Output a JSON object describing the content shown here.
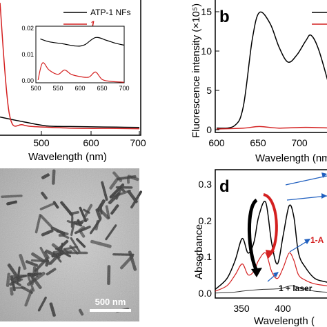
{
  "panel_a": {
    "legend": [
      "ATP-1 NFs",
      "1"
    ],
    "xlabel": "Wavelength (nm)",
    "xticks": [
      "500",
      "600",
      "700"
    ],
    "inset_xticks": [
      "500",
      "550",
      "600",
      "650",
      "700"
    ],
    "inset_yticks": [
      "0.02",
      "0.01",
      "0.00"
    ]
  },
  "panel_b": {
    "letter": "b",
    "xlabel": "Wavelength (nm)",
    "ylabel": "Fluorescence intensity (×10⁵)",
    "xticks": [
      "600",
      "650",
      "700"
    ],
    "yticks": [
      "15",
      "10",
      "5",
      "0"
    ]
  },
  "panel_c": {
    "scale_bar": "500 nm"
  },
  "panel_d": {
    "letter": "d",
    "xlabel": "Wavelength (",
    "ylabel": "Absorbance",
    "xticks": [
      "350",
      "400"
    ],
    "yticks": [
      "0.3",
      "0.2",
      "0.1",
      "0.0"
    ],
    "annotations": [
      "1-A",
      "1 + laser"
    ]
  },
  "colors": {
    "black": "#000000",
    "red": "#d42020",
    "blue": "#1f5fbf"
  },
  "chart_data": [
    {
      "type": "line",
      "panel": "a",
      "xlabel": "Wavelength (nm)",
      "xlim": [
        400,
        700
      ],
      "series": [
        {
          "name": "ATP-1 NFs",
          "x": [
            400,
            450,
            500,
            550,
            600,
            650,
            700
          ],
          "y": [
            0.04,
            0.025,
            0.012,
            0.01,
            0.009,
            0.008,
            0.007
          ]
        },
        {
          "name": "1",
          "x": [
            400,
            420,
            450,
            500,
            550,
            600,
            650,
            700
          ],
          "y": [
            0.3,
            0.05,
            0.015,
            0.008,
            0.005,
            0.004,
            0.004,
            0.003
          ]
        }
      ]
    },
    {
      "type": "line",
      "panel": "a-inset",
      "xlim": [
        500,
        700
      ],
      "ylim": [
        0,
        0.02
      ],
      "series": [
        {
          "name": "ATP-1 NFs",
          "x": [
            510,
            530,
            560,
            590,
            610,
            635,
            660,
            680,
            700
          ],
          "y": [
            0.0155,
            0.0145,
            0.0138,
            0.013,
            0.0134,
            0.016,
            0.015,
            0.014,
            0.0133
          ]
        },
        {
          "name": "1",
          "x": [
            505,
            515,
            530,
            550,
            565,
            580,
            600,
            620,
            635,
            650,
            670,
            700
          ],
          "y": [
            0.001,
            0.007,
            0.0045,
            0.003,
            0.0045,
            0.003,
            0.0022,
            0.002,
            0.0038,
            0.0012,
            0.0005,
            0.0002
          ]
        }
      ]
    },
    {
      "type": "line",
      "panel": "b",
      "xlabel": "Wavelength (nm)",
      "ylabel": "Fluorescence intensity (×10⁵)",
      "xlim": [
        600,
        730
      ],
      "ylim": [
        0,
        16
      ],
      "series": [
        {
          "name": "black",
          "x": [
            600,
            620,
            630,
            640,
            648,
            660,
            670,
            680,
            690,
            700,
            706,
            715,
            730
          ],
          "y": [
            0.2,
            0.5,
            3.0,
            11.5,
            14.9,
            13.5,
            10.5,
            8.6,
            9.5,
            11.3,
            12.0,
            10.0,
            4.0
          ]
        },
        {
          "name": "red",
          "x": [
            600,
            630,
            648,
            670,
            700,
            730
          ],
          "y": [
            0.1,
            0.2,
            0.4,
            0.2,
            0.3,
            0.2
          ]
        }
      ]
    },
    {
      "type": "line",
      "panel": "d",
      "xlabel": "Wavelength (",
      "ylabel": "Absorbance",
      "xlim": [
        335,
        440
      ],
      "ylim": [
        0,
        0.32
      ],
      "series": [
        {
          "name": "black",
          "x": [
            335,
            345,
            352,
            358,
            363,
            368,
            372,
            378,
            383,
            388,
            393,
            398,
            402,
            406,
            412,
            420,
            430,
            440
          ],
          "y": [
            0.02,
            0.05,
            0.1,
            0.16,
            0.12,
            0.15,
            0.22,
            0.26,
            0.15,
            0.09,
            0.17,
            0.25,
            0.22,
            0.12,
            0.08,
            0.05,
            0.04,
            0.03
          ]
        },
        {
          "name": "1-A",
          "x": [
            335,
            345,
            352,
            358,
            363,
            368,
            372,
            378,
            383,
            388,
            393,
            398,
            402,
            406,
            412,
            420,
            430,
            440
          ],
          "y": [
            0.015,
            0.03,
            0.06,
            0.09,
            0.06,
            0.07,
            0.1,
            0.12,
            0.07,
            0.05,
            0.08,
            0.12,
            0.1,
            0.06,
            0.045,
            0.035,
            0.03,
            0.025
          ]
        },
        {
          "name": "1 + laser",
          "x": [
            335,
            350,
            360,
            375,
            390,
            400,
            410,
            420,
            440
          ],
          "y": [
            0.01,
            0.012,
            0.016,
            0.02,
            0.022,
            0.03,
            0.022,
            0.015,
            0.01
          ]
        }
      ]
    }
  ]
}
